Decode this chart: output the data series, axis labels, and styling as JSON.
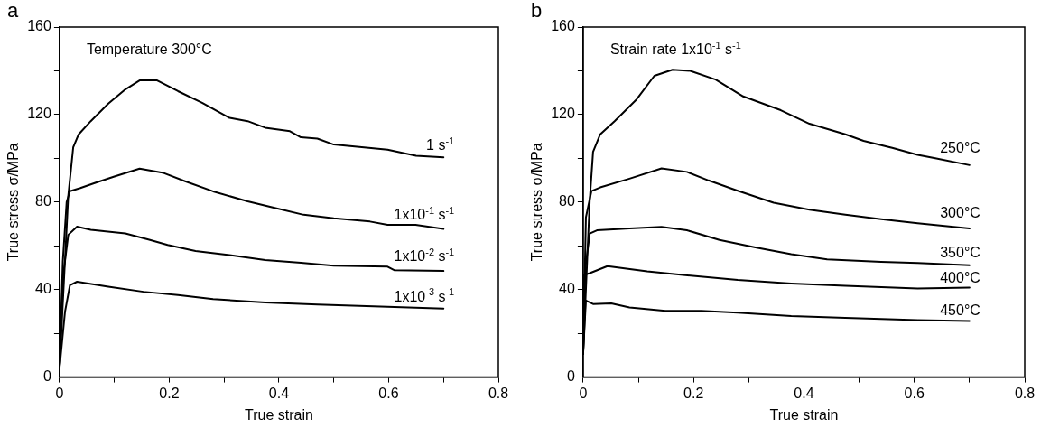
{
  "chart_data": [
    {
      "type": "line",
      "title": "a",
      "xlabel": "True strain",
      "ylabel": "True stress σ/MPa",
      "annotations": [
        "Temperature 300°C"
      ],
      "xlim": [
        0,
        0.8
      ],
      "ylim": [
        0,
        160
      ],
      "xticks": [
        0,
        {
          "value": 0.1,
          "label": null
        },
        0.2,
        {
          "value": 0.3,
          "label": null
        },
        0.4,
        {
          "value": 0.5,
          "label": null
        },
        0.6,
        {
          "value": 0.7,
          "label": null
        },
        0.8
      ],
      "yticks": [
        0,
        {
          "value": 20,
          "label": null
        },
        40,
        {
          "value": 60,
          "label": null
        },
        80,
        {
          "value": 100,
          "label": null
        },
        120,
        {
          "value": 140,
          "label": null
        },
        160
      ],
      "legend": false,
      "marker": "none",
      "line_style": "solid",
      "series": [
        {
          "name": "1 s$^{-1}$",
          "color": "#000000",
          "x": [
            0,
            0.016,
            0.025,
            0.035,
            0.057,
            0.089,
            0.12,
            0.146,
            0.178,
            0.216,
            0.26,
            0.31,
            0.343,
            0.375,
            0.42,
            0.44,
            0.47,
            0.5,
            0.534,
            0.598,
            0.65,
            0.7
          ],
          "values": [
            4,
            83,
            105,
            111,
            117,
            125,
            131.5,
            135.6,
            135.6,
            130.7,
            125.4,
            118.5,
            117,
            114,
            112.4,
            109.6,
            109,
            106.3,
            105.5,
            104,
            101.2,
            100.5
          ]
        },
        {
          "name": "1x10$^{-1}$ s$^{-1}$",
          "color": "#000000",
          "x": [
            0,
            0.006,
            0.013,
            0.019,
            0.038,
            0.064,
            0.1,
            0.146,
            0.19,
            0.23,
            0.28,
            0.343,
            0.394,
            0.445,
            0.5,
            0.566,
            0.598,
            0.649,
            0.7
          ],
          "values": [
            4,
            52.7,
            80,
            85,
            86.4,
            88.7,
            91.7,
            95.3,
            93.3,
            89.4,
            84.9,
            80.3,
            77.2,
            74.2,
            72.6,
            71.1,
            69.6,
            69.6,
            67.7
          ]
        },
        {
          "name": "1x10$^{-2}$ s$^{-1}$",
          "color": "#000000",
          "x": [
            0,
            0.006,
            0.016,
            0.032,
            0.057,
            0.12,
            0.165,
            0.197,
            0.248,
            0.31,
            0.375,
            0.44,
            0.5,
            0.598,
            0.61,
            0.7
          ],
          "values": [
            4,
            45,
            65,
            68.8,
            67.3,
            65.7,
            62.7,
            60.4,
            57.6,
            55.8,
            53.5,
            52.3,
            50.9,
            50.5,
            48.9,
            48.5
          ]
        },
        {
          "name": "1x10$^{-3}$ s$^{-1}$",
          "color": "#000000",
          "x": [
            0,
            0.01,
            0.019,
            0.032,
            0.089,
            0.153,
            0.216,
            0.28,
            0.375,
            0.47,
            0.598,
            0.7
          ],
          "values": [
            4,
            29.8,
            42,
            43.6,
            41.3,
            39,
            37.5,
            35.6,
            34.1,
            33.2,
            32.1,
            31.3
          ]
        }
      ]
    },
    {
      "type": "line",
      "title": "b",
      "xlabel": "True strain",
      "ylabel": "True stress σ/MPa",
      "annotations": [
        "Strain rate 1x10$^{-1}$ s$^{-1}$"
      ],
      "xlim": [
        0,
        0.8
      ],
      "ylim": [
        0,
        160
      ],
      "xticks": [
        0,
        {
          "value": 0.1,
          "label": null
        },
        0.2,
        {
          "value": 0.3,
          "label": null
        },
        0.4,
        {
          "value": 0.5,
          "label": null
        },
        0.6,
        {
          "value": 0.7,
          "label": null
        },
        0.8
      ],
      "yticks": [
        0,
        {
          "value": 20,
          "label": null
        },
        40,
        {
          "value": 60,
          "label": null
        },
        80,
        {
          "value": 100,
          "label": null
        },
        120,
        {
          "value": 140,
          "label": null
        },
        160
      ],
      "legend": false,
      "marker": "none",
      "line_style": "solid",
      "series": [
        {
          "name": "250°C",
          "color": "#000000",
          "x": [
            0,
            0.012,
            0.018,
            0.031,
            0.057,
            0.097,
            0.129,
            0.162,
            0.194,
            0.24,
            0.29,
            0.358,
            0.41,
            0.475,
            0.508,
            0.56,
            0.606,
            0.638,
            0.7
          ],
          "values": [
            10.7,
            81,
            103,
            111,
            117,
            127,
            137.7,
            140.5,
            140,
            136,
            128.3,
            122,
            115.8,
            111,
            108,
            104.8,
            101.6,
            100,
            96.9
          ]
        },
        {
          "name": "300°C",
          "color": "#000000",
          "x": [
            0,
            0.005,
            0.015,
            0.031,
            0.084,
            0.142,
            0.188,
            0.227,
            0.28,
            0.345,
            0.41,
            0.475,
            0.54,
            0.606,
            0.7
          ],
          "values": [
            10.7,
            73,
            85,
            86.7,
            90.7,
            95.4,
            93.8,
            89.9,
            85.2,
            79.7,
            76.5,
            74.2,
            72.2,
            70.3,
            67.9
          ]
        },
        {
          "name": "350°C",
          "color": "#000000",
          "x": [
            0,
            0.004,
            0.012,
            0.025,
            0.084,
            0.142,
            0.188,
            0.247,
            0.312,
            0.377,
            0.442,
            0.54,
            0.606,
            0.7
          ],
          "values": [
            10.7,
            49.9,
            65.6,
            67.1,
            67.9,
            68.7,
            67.1,
            62.7,
            59.3,
            56.2,
            53.8,
            52.7,
            52.2,
            51.1
          ]
        },
        {
          "name": "400°C",
          "color": "#000000",
          "x": [
            0,
            0.002,
            0.012,
            0.044,
            0.116,
            0.181,
            0.28,
            0.377,
            0.475,
            0.606,
            0.7
          ],
          "values": [
            10.7,
            46.7,
            47.5,
            50.7,
            48.3,
            46.7,
            44.4,
            42.8,
            41.7,
            40.5,
            40.9
          ]
        },
        {
          "name": "450°C",
          "color": "#000000",
          "x": [
            0,
            0.005,
            0.018,
            0.051,
            0.084,
            0.149,
            0.214,
            0.28,
            0.377,
            0.475,
            0.606,
            0.7
          ],
          "values": [
            10.7,
            35,
            33.4,
            33.7,
            31.8,
            30.3,
            30.3,
            29.5,
            27.9,
            27.1,
            26,
            25.6
          ]
        }
      ]
    }
  ]
}
